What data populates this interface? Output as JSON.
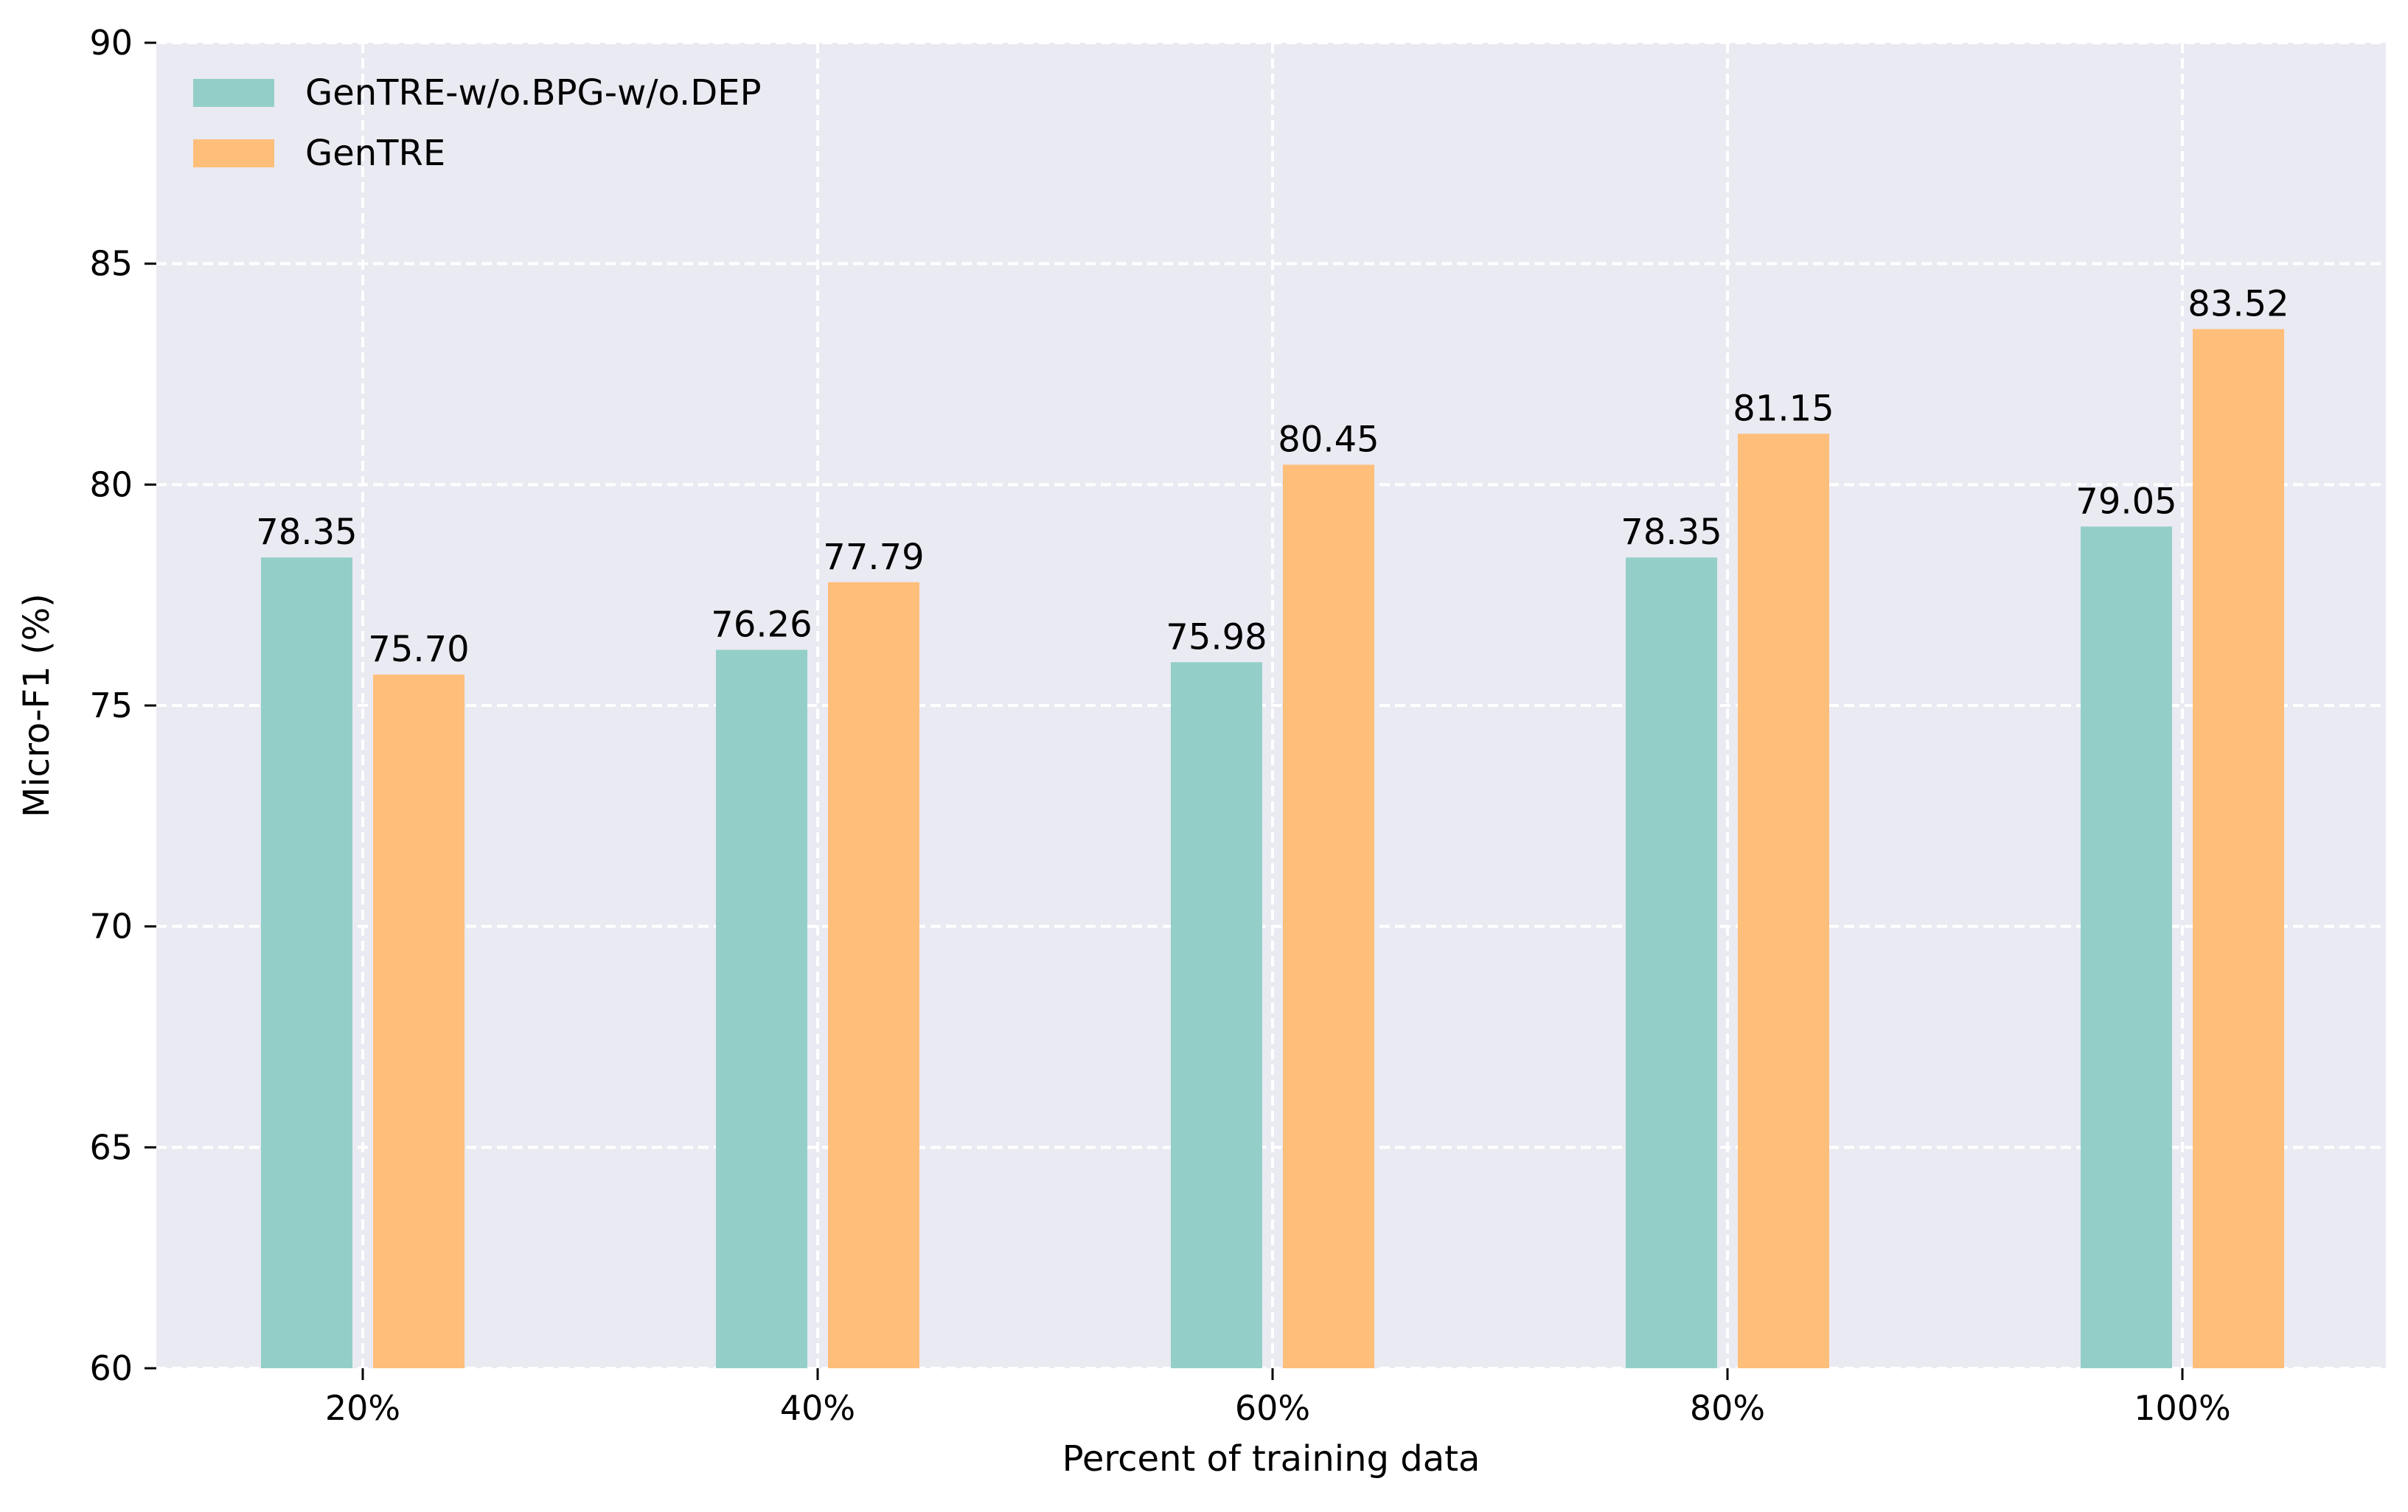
{
  "chart_data": {
    "type": "bar",
    "title": "",
    "xlabel": "Percent of training data",
    "ylabel": "Micro-F1 (%)",
    "ylim": [
      60,
      90
    ],
    "yticks": [
      60,
      65,
      70,
      75,
      80,
      85,
      90
    ],
    "categories": [
      "20%",
      "40%",
      "60%",
      "80%",
      "100%"
    ],
    "series": [
      {
        "name": "GenTRE-w/o.BPG-w/o.DEP",
        "color": "#93cfc8",
        "values": [
          78.35,
          76.26,
          75.98,
          78.35,
          79.05
        ],
        "labels": [
          "78.35",
          "76.26",
          "75.98",
          "78.35",
          "79.05"
        ]
      },
      {
        "name": "GenTRE",
        "color": "#ffbe7a",
        "values": [
          75.7,
          77.79,
          80.45,
          81.15,
          83.52
        ],
        "labels": [
          "75.70",
          "77.79",
          "80.45",
          "81.15",
          "83.52"
        ]
      }
    ],
    "legend_position": "top-left",
    "grid": true,
    "background": "#eaeaf2"
  }
}
